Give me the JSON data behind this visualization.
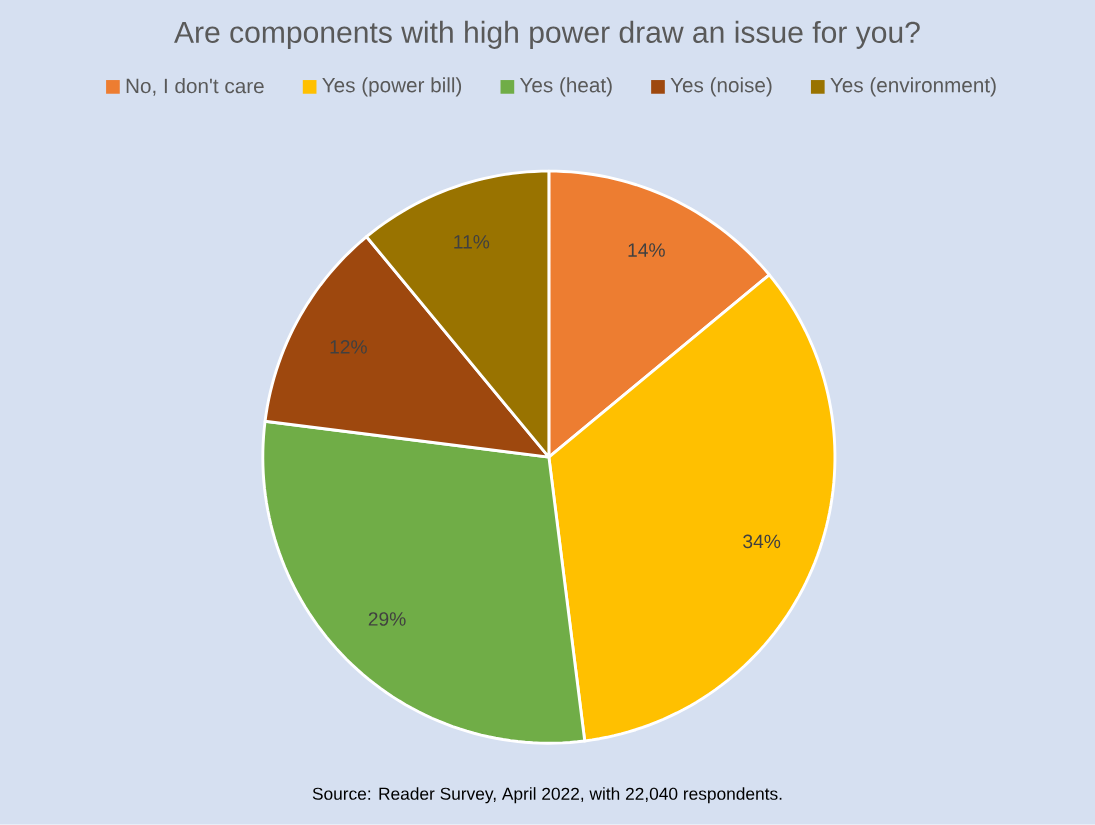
{
  "chart_data": {
    "type": "pie",
    "title": "Are components with high power draw an issue for you?",
    "categories": [
      "No, I don't care",
      "Yes (power bill)",
      "Yes (heat)",
      "Yes (noise)",
      "Yes (environment)"
    ],
    "values": [
      14,
      34,
      29,
      12,
      11
    ],
    "value_labels": [
      "14%",
      "34%",
      "29%",
      "12%",
      "11%"
    ],
    "colors": [
      "#ed7d31",
      "#ffc000",
      "#70ad47",
      "#9e480e",
      "#997300"
    ],
    "legend": "top",
    "annotations": [
      "Source: Reader Survey, April 2022, with 22,040 respondents."
    ]
  }
}
